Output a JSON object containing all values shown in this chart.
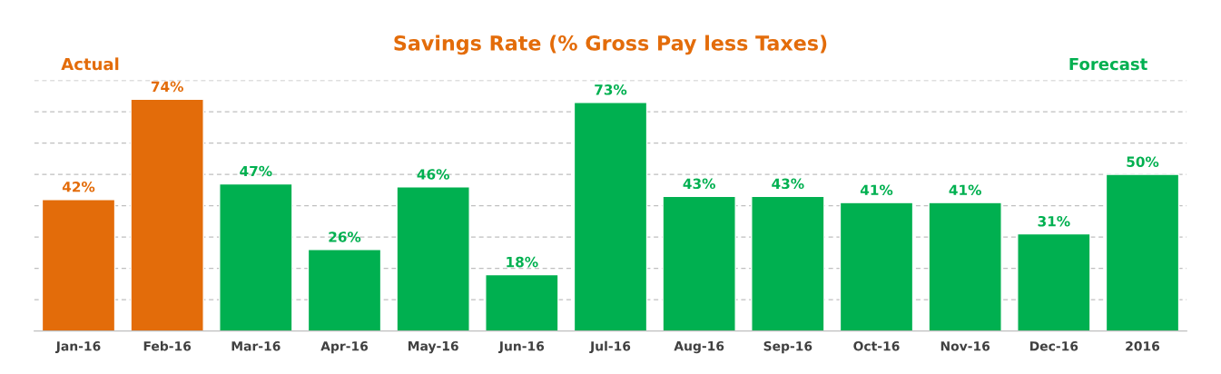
{
  "chart_data": {
    "type": "bar",
    "title": "Savings Rate (% Gross Pay less Taxes)",
    "categories": [
      "Jan-16",
      "Feb-16",
      "Mar-16",
      "Apr-16",
      "May-16",
      "Jun-16",
      "Jul-16",
      "Aug-16",
      "Sep-16",
      "Oct-16",
      "Nov-16",
      "Dec-16",
      "2016"
    ],
    "values": [
      42,
      74,
      47,
      26,
      46,
      18,
      73,
      43,
      43,
      41,
      41,
      31,
      50
    ],
    "value_labels": [
      "42%",
      "74%",
      "47%",
      "26%",
      "46%",
      "18%",
      "73%",
      "43%",
      "43%",
      "41%",
      "41%",
      "31%",
      "50%"
    ],
    "colors": [
      "#e36c0a",
      "#e36c0a",
      "#00b050",
      "#00b050",
      "#00b050",
      "#00b050",
      "#00b050",
      "#00b050",
      "#00b050",
      "#00b050",
      "#00b050",
      "#00b050",
      "#00b050"
    ],
    "ylim": [
      0,
      80
    ],
    "yticks": [
      {
        "value": 10,
        "label": null
      },
      {
        "value": 20,
        "label": null
      },
      {
        "value": 30,
        "label": null
      },
      {
        "value": 40,
        "label": null
      },
      {
        "value": 50,
        "label": null
      },
      {
        "value": 60,
        "label": null
      },
      {
        "value": 70,
        "label": null
      },
      {
        "value": 80,
        "label": null
      }
    ],
    "tick_labels": "x",
    "grid": "y",
    "annotations": [
      "Actual",
      "Forecast"
    ]
  }
}
